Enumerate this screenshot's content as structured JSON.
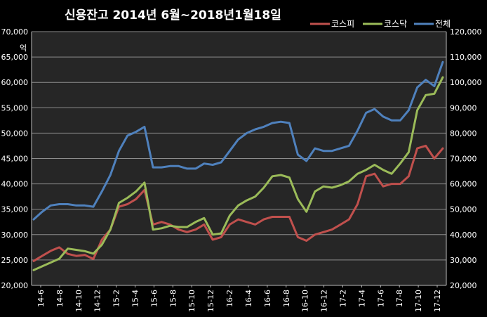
{
  "chart_data": {
    "type": "line",
    "title": "신용잔고  2014년 6월~2018년1월18일",
    "unit_label": "억",
    "grid": true,
    "legend_position": "top-right",
    "x_labels": [
      "14-6",
      "14-8",
      "14-10",
      "14-12",
      "15-2",
      "15-4",
      "15-6",
      "15-8",
      "15-10",
      "15-12",
      "16-2",
      "16-4",
      "16-6",
      "16-8",
      "16-10",
      "16-12",
      "17-2",
      "17-4",
      "17-6",
      "17-8",
      "17-10",
      "17-12"
    ],
    "left_axis": {
      "ylim": [
        20000,
        70000
      ],
      "ticks": [
        "20,000",
        "25,000",
        "30,000",
        "35,000",
        "40,000",
        "45,000",
        "50,000",
        "55,000",
        "60,000",
        "65,000",
        "70,000"
      ]
    },
    "right_axis": {
      "ylim": [
        20000,
        120000
      ],
      "ticks": [
        "20,000",
        "30,000",
        "40,000",
        "50,000",
        "60,000",
        "70,000",
        "80,000",
        "90,000",
        "100,000",
        "110,000",
        "120,000"
      ]
    },
    "series": [
      {
        "name": "코스피",
        "axis": "left",
        "color": "#c0504d",
        "values": [
          24800,
          25800,
          26800,
          27500,
          26200,
          25800,
          26000,
          25200,
          29000,
          31000,
          35500,
          36000,
          37000,
          38800,
          32000,
          32500,
          32000,
          31000,
          30500,
          31000,
          32000,
          29000,
          29500,
          32000,
          33000,
          32500,
          32000,
          33000,
          33500,
          33500,
          33500,
          29500,
          28800,
          30000,
          30500,
          31000,
          32000,
          33000,
          36000,
          41500,
          42000,
          39500,
          40000,
          40000,
          41500,
          47000,
          47500,
          45000,
          47000
        ]
      },
      {
        "name": "코스닥",
        "axis": "right",
        "color": "#9bbb59",
        "values": [
          26000,
          27500,
          29000,
          30500,
          34500,
          34000,
          33500,
          32500,
          36000,
          42000,
          52500,
          54500,
          57000,
          60500,
          42000,
          42500,
          43500,
          43000,
          43000,
          45000,
          46500,
          40000,
          40500,
          47500,
          51500,
          53500,
          55000,
          58500,
          63000,
          63500,
          62500,
          54000,
          49000,
          57000,
          59000,
          58500,
          59500,
          61000,
          64000,
          65500,
          67500,
          65500,
          64000,
          68000,
          72500,
          89000,
          95000,
          95500,
          102000
        ]
      },
      {
        "name": "전체",
        "axis": "right",
        "color": "#4f81bd",
        "values": [
          46000,
          49000,
          51500,
          52000,
          52000,
          51500,
          51500,
          51000,
          57000,
          63500,
          73000,
          79000,
          80500,
          82500,
          66500,
          66500,
          67000,
          67000,
          66000,
          66000,
          68000,
          67500,
          68500,
          73000,
          77500,
          80000,
          81500,
          82500,
          84000,
          84500,
          84000,
          71500,
          69000,
          74000,
          73000,
          73000,
          74000,
          75000,
          81000,
          88000,
          89500,
          86500,
          85000,
          85000,
          89000,
          98000,
          101000,
          98500,
          108000
        ]
      }
    ]
  }
}
